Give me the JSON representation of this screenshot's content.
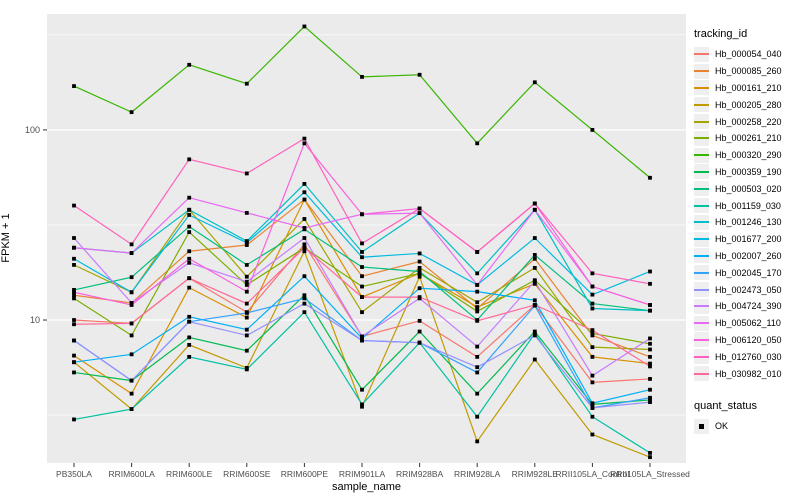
{
  "chart_data": {
    "type": "line",
    "title": "",
    "xlabel": "sample_name",
    "ylabel": "FPKM + 1",
    "y_scale": "log10",
    "ylim": [
      1.77,
      407
    ],
    "y_major_ticks": [
      10,
      100
    ],
    "y_major_tick_labels": [
      "10",
      "100"
    ],
    "y_minor_ticks": [
      3.162,
      31.62,
      316.2
    ],
    "grid": "on",
    "legend_position": "right",
    "legend_title": "tracking_id",
    "legend2_title": "quant_status",
    "legend2_items": [
      {
        "label": "OK",
        "marker": "black-square"
      }
    ],
    "marker": "black-square",
    "categories": [
      "PB350LA",
      "RRIM600LA",
      "RRIM600LE",
      "RRIM600SE",
      "RRIM600PE",
      "RRIM901LA",
      "RRIM928BA",
      "RRIM928LA",
      "RRIM928LE",
      "RRII105LA_Control",
      "RRII105LA_Stressed"
    ],
    "series": [
      {
        "name": "Hb_000054_040",
        "color": "#F8766D",
        "values": [
          10,
          9.6,
          16.6,
          11,
          25,
          8.2,
          9.9,
          6.4,
          12,
          4.7,
          4.9
        ]
      },
      {
        "name": "Hb_000085_260",
        "color": "#EA8331",
        "values": [
          13.5,
          12.3,
          23,
          24.8,
          43,
          17,
          20.3,
          11.5,
          21,
          8.3,
          6.4
        ]
      },
      {
        "name": "Hb_000161_210",
        "color": "#D89000",
        "values": [
          6.5,
          4.1,
          14.8,
          10.3,
          43,
          13.2,
          17.6,
          11.7,
          15.5,
          6.4,
          5.9
        ]
      },
      {
        "name": "Hb_000205_280",
        "color": "#C09B00",
        "values": [
          6,
          3.4,
          7.4,
          5.6,
          23,
          3.5,
          16.9,
          2.3,
          6.2,
          2.5,
          1.9
        ]
      },
      {
        "name": "Hb_000258_220",
        "color": "#A3A500",
        "values": [
          19.5,
          14,
          38,
          16.9,
          34,
          11,
          18.8,
          12.4,
          18.8,
          7.2,
          7
        ]
      },
      {
        "name": "Hb_000261_210",
        "color": "#7CAE00",
        "values": [
          13,
          8.3,
          29,
          15.3,
          24,
          15,
          17.6,
          11.1,
          16.2,
          8.5,
          7.5
        ]
      },
      {
        "name": "Hb_000320_290",
        "color": "#39B600",
        "values": [
          170,
          124,
          220,
          175,
          350,
          190,
          195,
          85,
          178,
          100,
          56
        ]
      },
      {
        "name": "Hb_000359_190",
        "color": "#00BB4E",
        "values": [
          5.3,
          4.8,
          8.1,
          6.9,
          13.5,
          4.3,
          8.7,
          4.1,
          8.7,
          3.6,
          3.8
        ]
      },
      {
        "name": "Hb_000503_020",
        "color": "#00BF7D",
        "values": [
          14.4,
          16.8,
          31,
          19.5,
          30,
          19,
          18,
          10,
          22,
          12.2,
          11.2
        ]
      },
      {
        "name": "Hb_001159_030",
        "color": "#00C1A3",
        "values": [
          3,
          3.4,
          6.4,
          5.5,
          11,
          3.6,
          7.6,
          3.1,
          8.5,
          3.1,
          2
        ]
      },
      {
        "name": "Hb_001246_130",
        "color": "#00BFC4",
        "values": [
          24,
          22.5,
          38,
          26,
          52,
          22.8,
          36.5,
          17.6,
          38,
          11.5,
          11.2
        ]
      },
      {
        "name": "Hb_001677_200",
        "color": "#00BAE0",
        "values": [
          21,
          14,
          35.7,
          25.5,
          47,
          21.4,
          22.4,
          15.3,
          27,
          13.6,
          18
        ]
      },
      {
        "name": "Hb_002007_260",
        "color": "#00B0F6",
        "values": [
          6,
          6.6,
          10.4,
          8.9,
          17,
          8,
          14.7,
          14.1,
          12.7,
          3.65,
          4.3
        ]
      },
      {
        "name": "Hb_002045_170",
        "color": "#35A2FF",
        "values": [
          7.8,
          4.8,
          9.8,
          10.9,
          13,
          7.8,
          7.6,
          5.3,
          11.9,
          3.45,
          3.9
        ]
      },
      {
        "name": "Hb_002473_050",
        "color": "#9590FF",
        "values": [
          7.8,
          4.8,
          9.8,
          8.3,
          12.2,
          7.8,
          7.6,
          5.65,
          8.3,
          3.45,
          3.7
        ]
      },
      {
        "name": "Hb_004724_390",
        "color": "#C77CFF",
        "values": [
          27,
          12.3,
          20,
          15.9,
          27,
          8.2,
          13,
          7.25,
          16,
          5.1,
          8
        ]
      },
      {
        "name": "Hb_005062_110",
        "color": "#E76BF3",
        "values": [
          24,
          22.5,
          44,
          36.6,
          30.5,
          36,
          36.5,
          15.3,
          38,
          15,
          12
        ]
      },
      {
        "name": "Hb_006120_050",
        "color": "#FA62DB",
        "values": [
          14,
          12,
          21,
          14.1,
          85,
          36,
          38.6,
          22.8,
          41,
          15,
          12
        ]
      },
      {
        "name": "Hb_012760_030",
        "color": "#FF62BC",
        "values": [
          40,
          25,
          70,
          59,
          90,
          25.3,
          38.6,
          22.8,
          41,
          17.6,
          15.5
        ]
      },
      {
        "name": "Hb_030982_010",
        "color": "#FF6A98",
        "values": [
          9.5,
          9.6,
          16.6,
          12.2,
          24,
          13.2,
          13.2,
          9.9,
          12,
          8.85,
          5.7
        ]
      }
    ]
  },
  "style_colors": {
    "panel_background": "#EBEBEB",
    "grid_line": "#FFFFFF",
    "tick_label": "#4D4D4D",
    "tick_mark": "#333333",
    "point": "#000000"
  }
}
